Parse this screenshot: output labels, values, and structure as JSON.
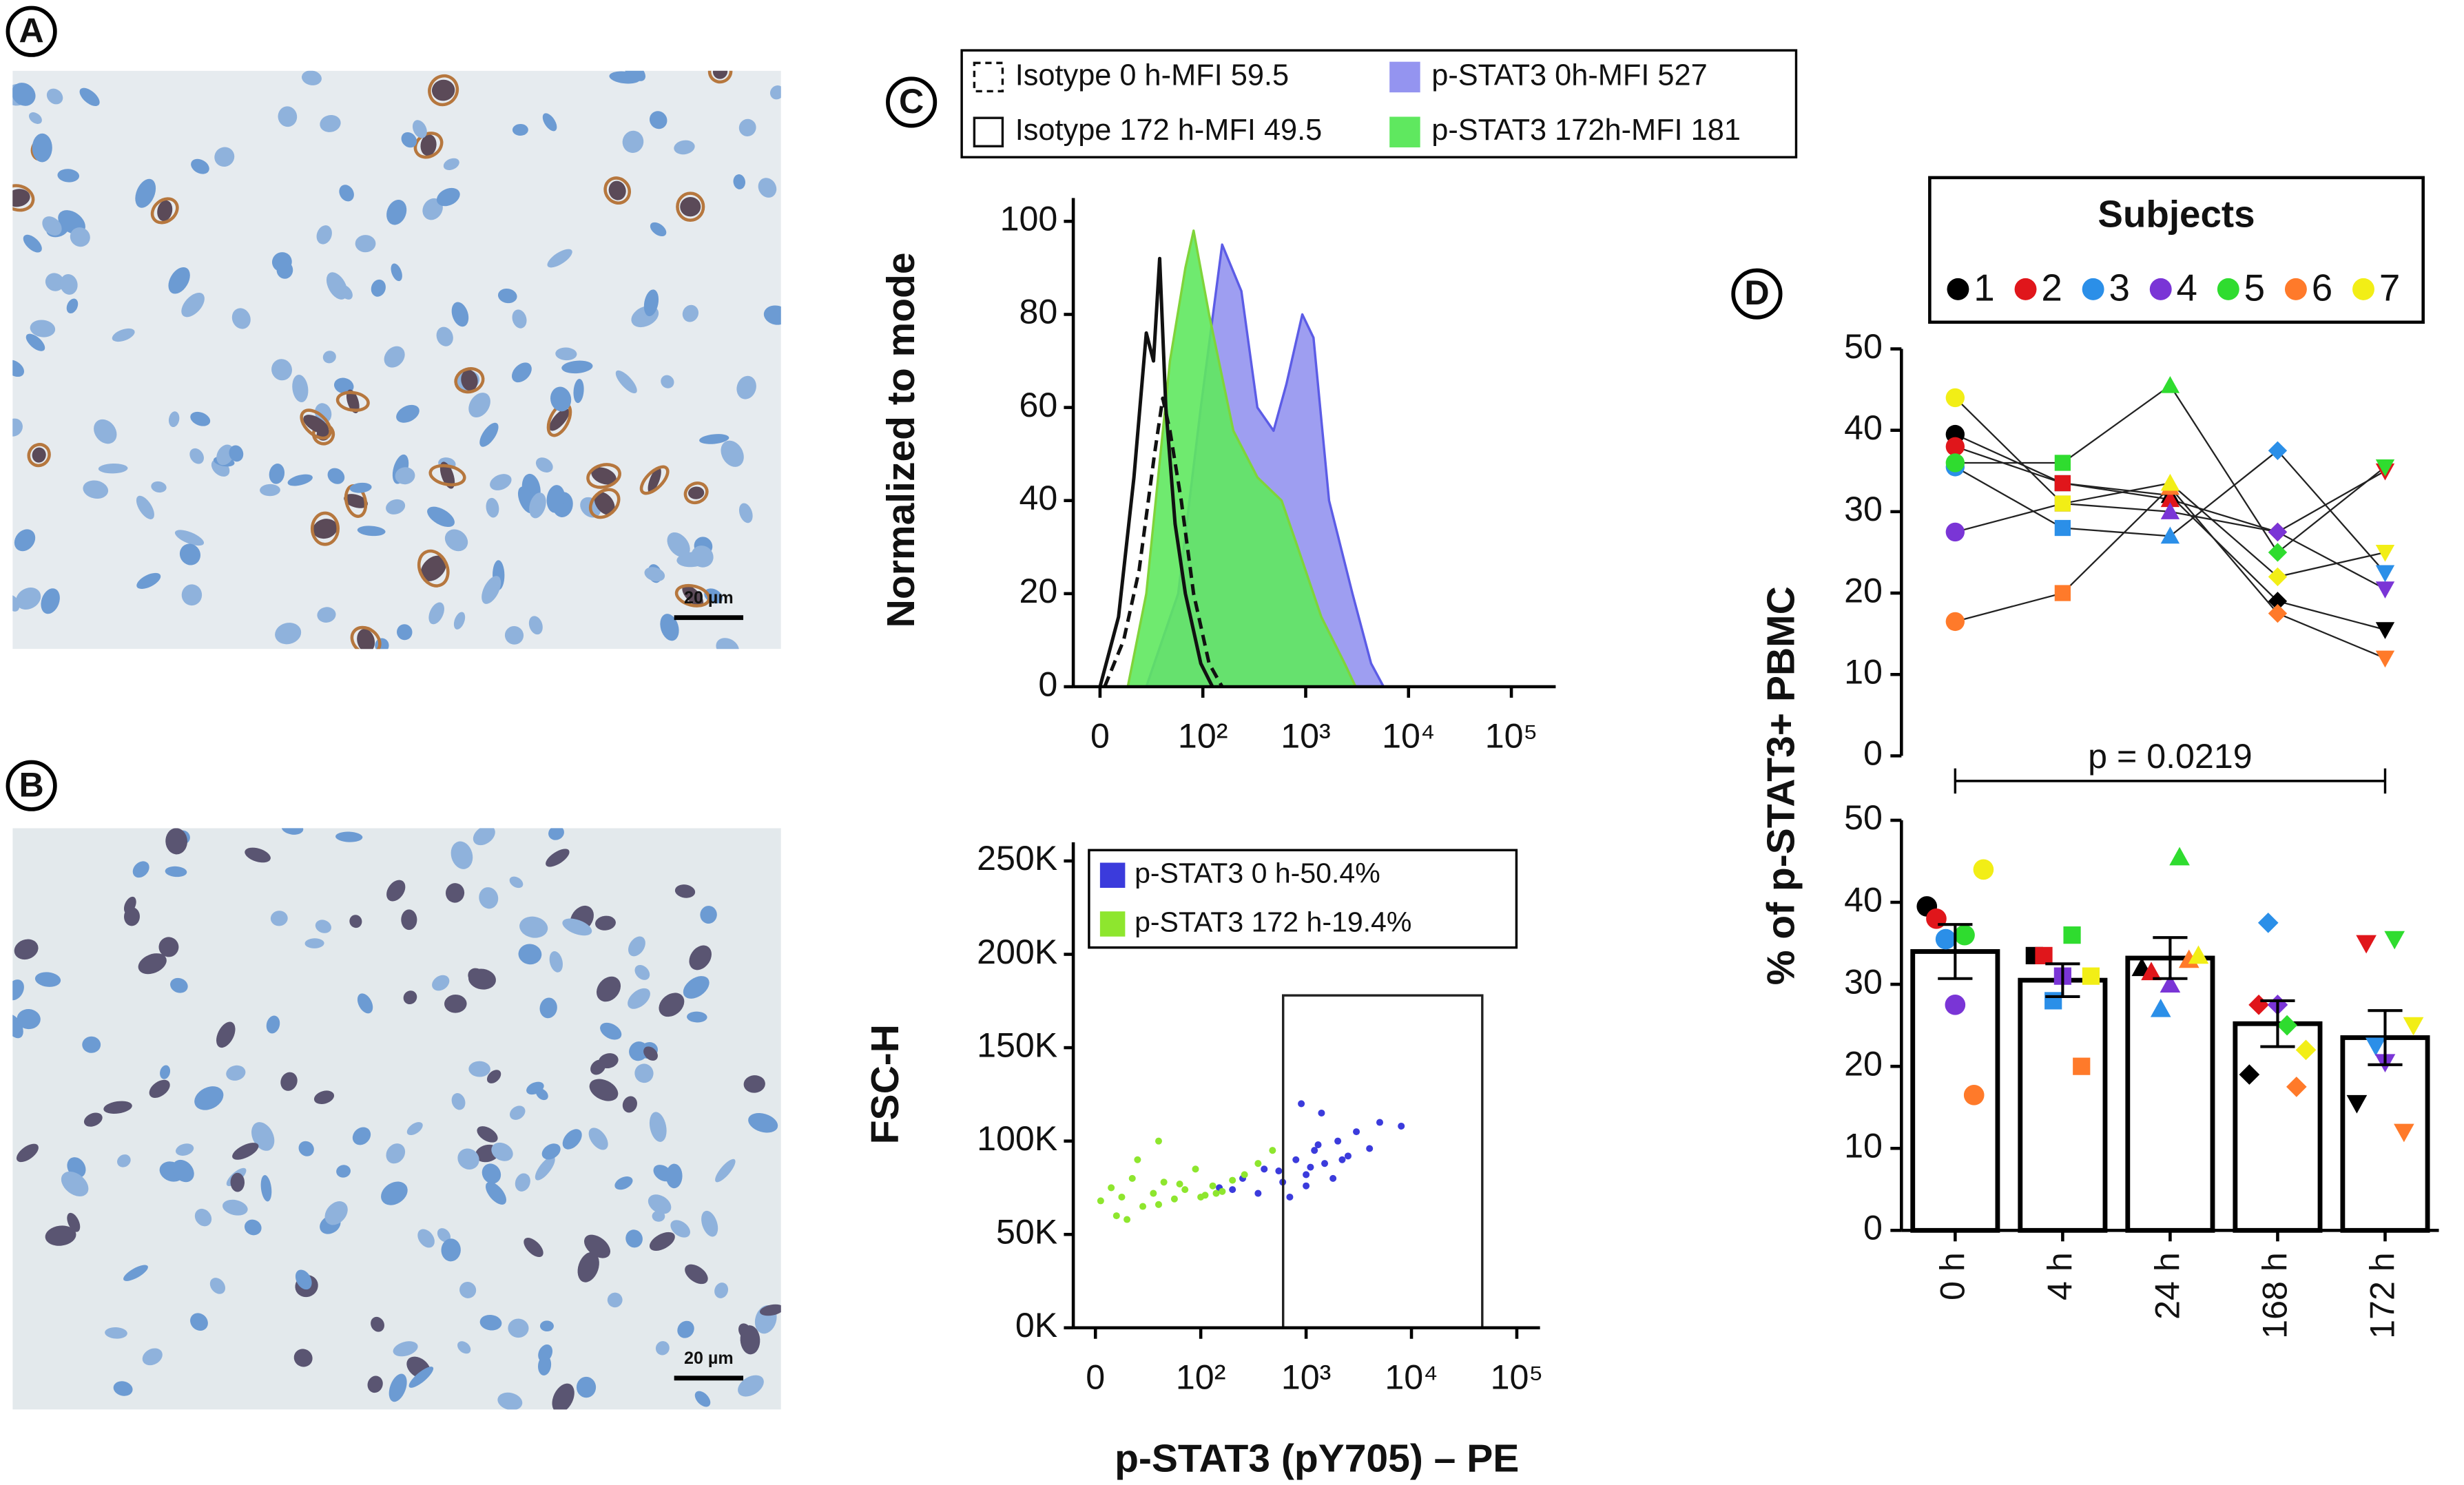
{
  "figure": {
    "labels": [
      "A",
      "B",
      "C",
      "D"
    ]
  },
  "images": [
    {
      "scale_bar": "20 µm"
    },
    {
      "scale_bar": "20 µm"
    }
  ],
  "chart_data": [
    {
      "type": "area",
      "ylabel": "Normalized to mode",
      "xscale": "biexponential",
      "xlim": [
        -26,
        270000
      ],
      "xticks": [
        0,
        {
          "value": 100,
          "label": "10²"
        },
        {
          "value": 1000,
          "label": "10³"
        },
        {
          "value": 10000,
          "label": "10⁴"
        },
        {
          "value": 100000,
          "label": "10⁵"
        }
      ],
      "ylim": [
        0,
        105
      ],
      "yticks": [
        0,
        20,
        40,
        60,
        80,
        100
      ],
      "series": [
        {
          "name": "Isotype 0 h-MFI 59.5",
          "color": "#111111",
          "dashed": true,
          "x": [
            4.5,
            23,
            38,
            53,
            61,
            68,
            79,
            91,
            115,
            154
          ],
          "values": [
            0,
            10,
            25,
            50,
            62,
            55,
            40,
            20,
            5,
            0
          ]
        },
        {
          "name": "Isotype 172 h-MFI 49.5",
          "color": "#111111",
          "dashed": false,
          "x": [
            0,
            18,
            33,
            45,
            52,
            58,
            64,
            73,
            83,
            98,
            124
          ],
          "values": [
            0,
            15,
            45,
            76,
            70,
            92,
            60,
            35,
            20,
            5,
            0
          ]
        },
        {
          "name": "p-STAT3 0h-MFI 527",
          "color": "#5c5ce6",
          "fill": "#9494f0",
          "dashed": false,
          "x": [
            45,
            76,
            98,
            154,
            237,
            339,
            487,
            649,
            927,
            1191,
            1688,
            2851,
            4325,
            5727
          ],
          "values": [
            0,
            20,
            60,
            95,
            85,
            60,
            55,
            65,
            80,
            75,
            40,
            20,
            5,
            0
          ]
        },
        {
          "name": "p-STAT3 172h-MFI 181",
          "color": "#7fd43a",
          "fill": "#5fe85f",
          "dashed": false,
          "x": [
            27,
            45,
            68,
            83,
            91,
            115,
            198,
            339,
            583,
            835,
            1419,
            2393,
            3055
          ],
          "values": [
            0,
            20,
            70,
            90,
            98,
            80,
            55,
            45,
            40,
            30,
            15,
            5,
            0
          ]
        }
      ]
    },
    {
      "type": "scatter",
      "xlabel": "p-STAT3 (pY705) – PE",
      "ylabel": "FSC-H",
      "xscale": "biexponential",
      "xlim": [
        -21,
        166000
      ],
      "xticks": [
        0,
        {
          "value": 100,
          "label": "10²"
        },
        {
          "value": 1000,
          "label": "10³"
        },
        {
          "value": 10000,
          "label": "10⁴"
        },
        {
          "value": 100000,
          "label": "10⁵"
        }
      ],
      "ylim": [
        0,
        260000
      ],
      "yticks": [
        {
          "value": 0,
          "label": "0K"
        },
        {
          "value": 50000,
          "label": "50K"
        },
        {
          "value": 100000,
          "label": "100K"
        },
        {
          "value": 150000,
          "label": "150K"
        },
        {
          "value": 200000,
          "label": "200K"
        },
        {
          "value": 250000,
          "label": "250K"
        }
      ],
      "gate": {
        "x": [
          605,
          47000
        ],
        "y": [
          0,
          178000
        ]
      },
      "series": [
        {
          "name": "p-STAT3 0 h-50.4%",
          "color": "#3b3bdc",
          "x": [
            150,
            250,
            400,
            600,
            800,
            1000,
            1200,
            1500,
            2000,
            2500,
            3000,
            5000,
            700,
            900,
            1100,
            1300,
            350,
            1800,
            4000,
            8000,
            200,
            550,
            1000,
            1400,
            2200
          ],
          "values": [
            75000,
            80000,
            85000,
            78000,
            90000,
            82000,
            95000,
            88000,
            100000,
            92000,
            105000,
            110000,
            70000,
            120000,
            86000,
            98000,
            72000,
            80000,
            96000,
            108000,
            74000,
            84000,
            76000,
            115000,
            90000
          ]
        },
        {
          "name": "p-STAT3 172 h-19.4%",
          "color": "#8ee62e",
          "x": [
            5,
            15,
            25,
            35,
            45,
            55,
            65,
            75,
            85,
            95,
            110,
            130,
            160,
            200,
            260,
            350,
            480,
            20,
            40,
            60,
            80,
            100,
            140,
            60,
            30
          ],
          "values": [
            68000,
            75000,
            70000,
            80000,
            65000,
            72000,
            78000,
            69000,
            74000,
            85000,
            71000,
            76000,
            73000,
            79000,
            82000,
            88000,
            95000,
            60000,
            90000,
            66000,
            77000,
            70000,
            72000,
            100000,
            58000
          ]
        }
      ]
    },
    {
      "type": "bar",
      "ylabel": "% of p-STAT3+ PBMC",
      "legend_title": "Subjects",
      "annotation": "p = 0.0219",
      "categories": [
        "0 h",
        "4 h",
        "24 h",
        "168 h",
        "172 h"
      ],
      "values": [
        34,
        30.5,
        33.2,
        25.2,
        23.5
      ],
      "errors": [
        3.3,
        2,
        2.5,
        2.8,
        3.3
      ],
      "markers": [
        "circle",
        "square",
        "triangle",
        "diamond",
        "triangle-down"
      ],
      "ylim": [
        0,
        50
      ],
      "yticks": [
        0,
        10,
        20,
        30,
        40,
        50
      ],
      "upper_ylim": [
        0,
        50
      ],
      "upper_yticks": [
        0,
        10,
        20,
        30,
        40,
        50
      ],
      "series": [
        {
          "name": "1",
          "color": "#000000",
          "values": [
            39.5,
            33.5,
            32,
            19,
            15.5
          ]
        },
        {
          "name": "2",
          "color": "#e0161b",
          "values": [
            38,
            33.5,
            31.5,
            27.5,
            35
          ]
        },
        {
          "name": "3",
          "color": "#2b8fe8",
          "values": [
            35.5,
            28,
            27,
            37.5,
            22.5
          ]
        },
        {
          "name": "4",
          "color": "#7a35d6",
          "values": [
            27.5,
            31,
            30,
            27.5,
            20.5
          ]
        },
        {
          "name": "5",
          "color": "#2fdc2f",
          "values": [
            36,
            36,
            45.5,
            25,
            35.5
          ]
        },
        {
          "name": "6",
          "color": "#ff7a2a",
          "values": [
            16.5,
            20,
            33,
            17.5,
            12
          ]
        },
        {
          "name": "7",
          "color": "#f2ee16",
          "values": [
            44,
            31,
            33.5,
            22,
            25
          ]
        }
      ]
    }
  ]
}
